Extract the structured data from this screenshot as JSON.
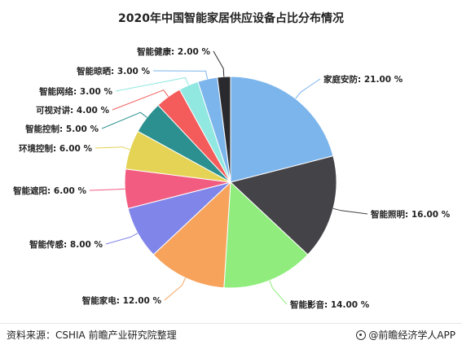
{
  "chart_data": {
    "type": "pie",
    "title": "2020年中国智能家居供应设备占比分布情况",
    "unit": "%",
    "slices": [
      {
        "label": "家庭安防",
        "value": 21.0,
        "display": "家庭安防: 21.00 %",
        "color": "#7cb5ec"
      },
      {
        "label": "智能照明",
        "value": 16.0,
        "display": "智能照明: 16.00 %",
        "color": "#434348"
      },
      {
        "label": "智能影音",
        "value": 14.0,
        "display": "智能影音: 14.00 %",
        "color": "#90ed7d"
      },
      {
        "label": "智能家电",
        "value": 12.0,
        "display": "智能家电: 12.00 %",
        "color": "#f7a35c"
      },
      {
        "label": "智能传感",
        "value": 8.0,
        "display": "智能传感: 8.00 %",
        "color": "#8085e9"
      },
      {
        "label": "智能遮阳",
        "value": 6.0,
        "display": "智能遮阳: 6.00 %",
        "color": "#f15c80"
      },
      {
        "label": "环境控制",
        "value": 6.0,
        "display": "环境控制: 6.00 %",
        "color": "#e4d354"
      },
      {
        "label": "智能控制",
        "value": 5.0,
        "display": "智能控制: 5.00 %",
        "color": "#2b908f"
      },
      {
        "label": "可视对讲",
        "value": 4.0,
        "display": "可视对讲: 4.00 %",
        "color": "#f45b5b"
      },
      {
        "label": "智能网络",
        "value": 3.0,
        "display": "智能网络: 3.00 %",
        "color": "#91e8e1"
      },
      {
        "label": "智能晾晒",
        "value": 3.0,
        "display": "智能晾晒: 3.00 %",
        "color": "#7cb5ec"
      },
      {
        "label": "智能健康",
        "value": 2.0,
        "display": "智能健康: 2.00 %",
        "color": "#2a2a2e"
      }
    ]
  },
  "footer": {
    "source": "资料来源：CSHIA 前瞻产业研究院整理",
    "brand": "@前瞻经济学人APP"
  }
}
